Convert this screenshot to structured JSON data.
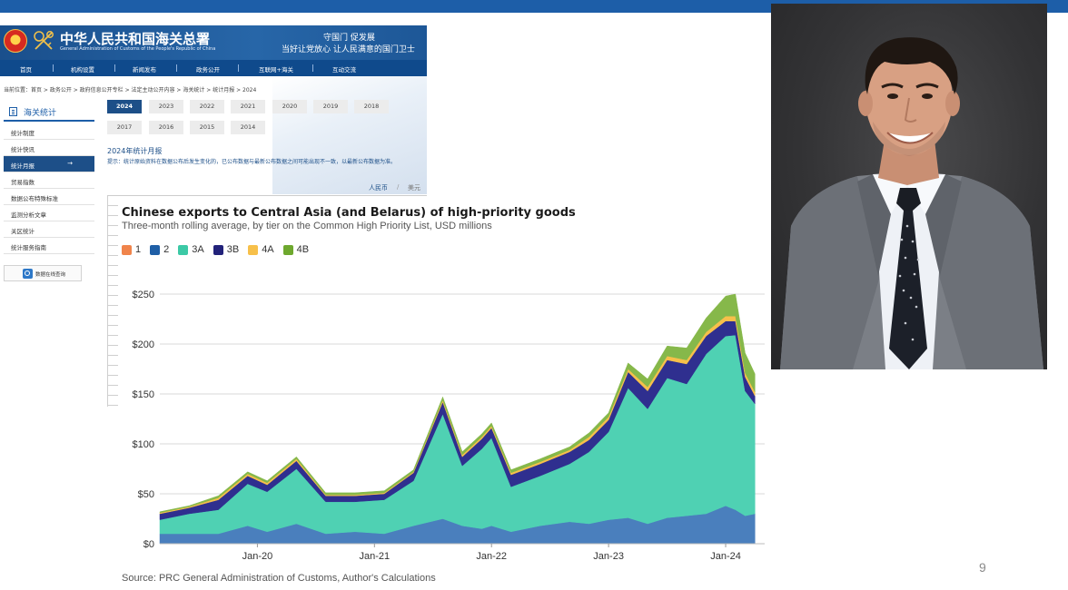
{
  "slide": {
    "page_number": "9"
  },
  "website": {
    "title": "中华人民共和国海关总署",
    "subtitle": "General Administration of Customs of the People's Republic of China",
    "slogan_line1": "守国门 促发展",
    "slogan_line2": "当好让党放心 让人民满意的国门卫士",
    "nav": [
      "首页",
      "机构设置",
      "新闻发布",
      "政务公开",
      "互联网+海关",
      "互动交流"
    ],
    "breadcrumb": "当前位置：首页 > 政务公开 > 政府信息公开专栏 > 法定主动公开内容 > 海关统计 > 统计月报 > 2024",
    "sidebar_title": "海关统计",
    "sidebar_items": [
      "统计制度",
      "统计快讯",
      "统计月报",
      "贸易指数",
      "数据公布特殊标准",
      "监测分析文章",
      "关区统计",
      "统计服务指南"
    ],
    "sidebar_active_index": 2,
    "sidebar_active_arrow": "→",
    "query_button": "数据在线查询",
    "years_row1": [
      "2024",
      "2023",
      "2022",
      "2021",
      "2020",
      "2019",
      "2018"
    ],
    "years_row2": [
      "2017",
      "2016",
      "2015",
      "2014"
    ],
    "active_year": "2024",
    "report_title": "2024年统计月报",
    "hint": "提示：统计原始资料在数据公布后发生变化的，已公布数据与最新公布数据之间可能出现不一致，以最新公布数据为准。",
    "currency_active": "人民币",
    "currency_sep": "/",
    "currency_other": "美元"
  },
  "chart_data": {
    "type": "area",
    "stacked": true,
    "title": "Chinese exports to Central Asia (and Belarus) of high-priority goods",
    "subtitle": "Three-month rolling average, by tier on the Common High Priority List, USD millions",
    "source": "Source: PRC General Administration of Customs, Author's Calculations",
    "legend_position": "top-left",
    "grid": true,
    "ylim": [
      0,
      260
    ],
    "yticks": [
      0,
      50,
      100,
      150,
      200,
      250
    ],
    "ytick_labels": [
      "$0",
      "$50",
      "$100",
      "$150",
      "$200",
      "$250"
    ],
    "xlim": [
      "2019-03",
      "2024-05"
    ],
    "xticks": [
      "2020-01",
      "2021-01",
      "2022-01",
      "2023-01",
      "2024-01"
    ],
    "xtick_labels": [
      "Jan-20",
      "Jan-21",
      "Jan-22",
      "Jan-23",
      "Jan-24"
    ],
    "x": [
      "2019-03",
      "2019-06",
      "2019-09",
      "2019-12",
      "2020-02",
      "2020-05",
      "2020-08",
      "2020-11",
      "2021-02",
      "2021-05",
      "2021-08",
      "2021-10",
      "2021-12",
      "2022-01",
      "2022-03",
      "2022-06",
      "2022-09",
      "2022-11",
      "2023-01",
      "2023-03",
      "2023-05",
      "2023-07",
      "2023-09",
      "2023-11",
      "2024-01",
      "2024-02",
      "2024-03",
      "2024-04"
    ],
    "series": [
      {
        "name": "1",
        "color": "#f0844b",
        "values": [
          0,
          0,
          0,
          0,
          0,
          0,
          0,
          0,
          0,
          0,
          0,
          0,
          0,
          0,
          0,
          0,
          0,
          0,
          0,
          0,
          0,
          0,
          0,
          0,
          0,
          0,
          0,
          0
        ]
      },
      {
        "name": "2",
        "color": "#4a7fbd",
        "values": [
          10,
          10,
          10,
          18,
          12,
          20,
          10,
          12,
          10,
          18,
          25,
          18,
          15,
          18,
          12,
          18,
          22,
          20,
          24,
          26,
          20,
          26,
          28,
          30,
          38,
          34,
          28,
          30
        ]
      },
      {
        "name": "3A",
        "color": "#4fd1b3",
        "values": [
          14,
          20,
          24,
          42,
          40,
          55,
          32,
          30,
          34,
          45,
          105,
          60,
          80,
          88,
          45,
          50,
          58,
          72,
          88,
          130,
          115,
          140,
          132,
          160,
          170,
          175,
          125,
          110
        ]
      },
      {
        "name": "3B",
        "color": "#2f2f8f",
        "values": [
          6,
          6,
          10,
          8,
          7,
          8,
          6,
          6,
          6,
          8,
          12,
          9,
          10,
          10,
          12,
          12,
          12,
          12,
          12,
          16,
          18,
          18,
          20,
          18,
          15,
          14,
          14,
          8
        ]
      },
      {
        "name": "4A",
        "color": "#f7c04a",
        "values": [
          1,
          1,
          2,
          2,
          2,
          2,
          1,
          1,
          1,
          1,
          2,
          2,
          2,
          2,
          2,
          2,
          2,
          3,
          3,
          3,
          4,
          4,
          4,
          4,
          5,
          5,
          4,
          4
        ]
      },
      {
        "name": "4B",
        "color": "#86b84a",
        "values": [
          1,
          1,
          2,
          2,
          2,
          2,
          2,
          2,
          2,
          2,
          3,
          3,
          3,
          3,
          3,
          3,
          3,
          4,
          4,
          6,
          8,
          10,
          12,
          14,
          20,
          22,
          20,
          18
        ]
      }
    ]
  }
}
